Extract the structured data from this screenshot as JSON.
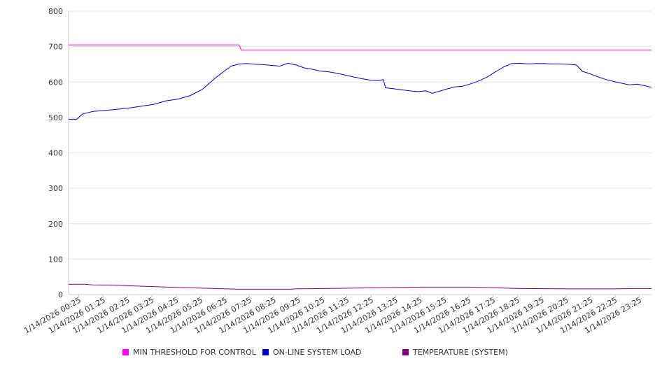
{
  "chart_data": {
    "type": "line",
    "ylim": [
      0,
      800
    ],
    "y_ticks": [
      0,
      100,
      200,
      300,
      400,
      500,
      600,
      700,
      800
    ],
    "x_tick_labels": [
      "1/14/2026 00:25",
      "1/14/2026 01:25",
      "1/14/2026 02:25",
      "1/14/2026 03:25",
      "1/14/2026 04:25",
      "1/14/2026 05:25",
      "1/14/2026 06:25",
      "1/14/2026 07:25",
      "1/14/2026 08:25",
      "1/14/2026 09:25",
      "1/14/2026 10:25",
      "1/14/2026 11:25",
      "1/14/2026 12:25",
      "1/14/2026 13:25",
      "1/14/2026 14:25",
      "1/14/2026 15:25",
      "1/14/2026 16:25",
      "1/14/2026 17:25",
      "1/14/2026 18:25",
      "1/14/2026 19:25",
      "1/14/2026 20:25",
      "1/14/2026 21:25",
      "1/14/2026 22:25",
      "1/14/2026 23:25"
    ],
    "x_range": [
      "1/14/2026 00:00",
      "1/14/2026 23:55"
    ],
    "grid": true,
    "legend_position": "bottom",
    "series": [
      {
        "name": "MIN THRESHOLD FOR CONTROL",
        "color": "#ff00ff",
        "points": [
          [
            "1/14/2026 00:00",
            705
          ],
          [
            "1/14/2026 07:00",
            705
          ],
          [
            "1/14/2026 07:05",
            690
          ],
          [
            "1/14/2026 23:55",
            690
          ]
        ]
      },
      {
        "name": "ON-LINE SYSTEM LOAD",
        "color": "#0000cc",
        "points": [
          [
            "1/14/2026 00:00",
            495
          ],
          [
            "1/14/2026 00:20",
            495
          ],
          [
            "1/14/2026 00:35",
            510
          ],
          [
            "1/14/2026 01:00",
            517
          ],
          [
            "1/14/2026 01:30",
            520
          ],
          [
            "1/14/2026 02:00",
            523
          ],
          [
            "1/14/2026 02:30",
            527
          ],
          [
            "1/14/2026 03:00",
            532
          ],
          [
            "1/14/2026 03:30",
            537
          ],
          [
            "1/14/2026 04:00",
            547
          ],
          [
            "1/14/2026 04:30",
            552
          ],
          [
            "1/14/2026 05:00",
            562
          ],
          [
            "1/14/2026 05:30",
            580
          ],
          [
            "1/14/2026 05:45",
            595
          ],
          [
            "1/14/2026 06:00",
            610
          ],
          [
            "1/14/2026 06:20",
            628
          ],
          [
            "1/14/2026 06:40",
            645
          ],
          [
            "1/14/2026 07:00",
            651
          ],
          [
            "1/14/2026 07:20",
            652
          ],
          [
            "1/14/2026 07:40",
            650
          ],
          [
            "1/14/2026 08:00",
            649
          ],
          [
            "1/14/2026 08:20",
            647
          ],
          [
            "1/14/2026 08:40",
            645
          ],
          [
            "1/14/2026 09:00",
            653
          ],
          [
            "1/14/2026 09:20",
            648
          ],
          [
            "1/14/2026 09:40",
            640
          ],
          [
            "1/14/2026 10:00",
            636
          ],
          [
            "1/14/2026 10:20",
            631
          ],
          [
            "1/14/2026 10:40",
            629
          ],
          [
            "1/14/2026 11:00",
            625
          ],
          [
            "1/14/2026 11:20",
            620
          ],
          [
            "1/14/2026 11:40",
            615
          ],
          [
            "1/14/2026 12:00",
            610
          ],
          [
            "1/14/2026 12:20",
            606
          ],
          [
            "1/14/2026 12:40",
            604
          ],
          [
            "1/14/2026 12:55",
            607
          ],
          [
            "1/14/2026 13:00",
            584
          ],
          [
            "1/14/2026 13:20",
            581
          ],
          [
            "1/14/2026 13:40",
            578
          ],
          [
            "1/14/2026 14:00",
            575
          ],
          [
            "1/14/2026 14:20",
            573
          ],
          [
            "1/14/2026 14:40",
            575
          ],
          [
            "1/14/2026 14:55",
            568
          ],
          [
            "1/14/2026 15:10",
            573
          ],
          [
            "1/14/2026 15:30",
            580
          ],
          [
            "1/14/2026 15:50",
            586
          ],
          [
            "1/14/2026 16:10",
            588
          ],
          [
            "1/14/2026 16:30",
            595
          ],
          [
            "1/14/2026 16:50",
            603
          ],
          [
            "1/14/2026 17:10",
            614
          ],
          [
            "1/14/2026 17:30",
            628
          ],
          [
            "1/14/2026 17:50",
            642
          ],
          [
            "1/14/2026 18:10",
            652
          ],
          [
            "1/14/2026 18:30",
            653
          ],
          [
            "1/14/2026 18:50",
            651
          ],
          [
            "1/14/2026 19:10",
            652
          ],
          [
            "1/14/2026 19:30",
            652
          ],
          [
            "1/14/2026 19:50",
            651
          ],
          [
            "1/14/2026 20:10",
            651
          ],
          [
            "1/14/2026 20:30",
            650
          ],
          [
            "1/14/2026 20:50",
            648
          ],
          [
            "1/14/2026 21:05",
            630
          ],
          [
            "1/14/2026 21:20",
            625
          ],
          [
            "1/14/2026 21:40",
            616
          ],
          [
            "1/14/2026 22:00",
            608
          ],
          [
            "1/14/2026 22:20",
            602
          ],
          [
            "1/14/2026 22:40",
            597
          ],
          [
            "1/14/2026 23:00",
            592
          ],
          [
            "1/14/2026 23:20",
            594
          ],
          [
            "1/14/2026 23:40",
            589
          ],
          [
            "1/14/2026 23:55",
            585
          ]
        ]
      },
      {
        "name": "TEMPERATURE (SYSTEM)",
        "color": "#800080",
        "points": [
          [
            "1/14/2026 00:00",
            29
          ],
          [
            "1/14/2026 00:40",
            29
          ],
          [
            "1/14/2026 01:00",
            27
          ],
          [
            "1/14/2026 02:00",
            26
          ],
          [
            "1/14/2026 02:50",
            24
          ],
          [
            "1/14/2026 03:40",
            22
          ],
          [
            "1/14/2026 04:30",
            20
          ],
          [
            "1/14/2026 05:30",
            18
          ],
          [
            "1/14/2026 06:30",
            16
          ],
          [
            "1/14/2026 07:00",
            15
          ],
          [
            "1/14/2026 09:00",
            15
          ],
          [
            "1/14/2026 09:20",
            16
          ],
          [
            "1/14/2026 10:30",
            17
          ],
          [
            "1/14/2026 11:30",
            18
          ],
          [
            "1/14/2026 12:40",
            19
          ],
          [
            "1/14/2026 13:30",
            20
          ],
          [
            "1/14/2026 14:30",
            21
          ],
          [
            "1/14/2026 16:30",
            21
          ],
          [
            "1/14/2026 17:30",
            19
          ],
          [
            "1/14/2026 18:30",
            17
          ],
          [
            "1/14/2026 20:30",
            16
          ],
          [
            "1/14/2026 22:30",
            16
          ],
          [
            "1/14/2026 23:00",
            17
          ],
          [
            "1/14/2026 23:55",
            17
          ]
        ]
      }
    ]
  }
}
